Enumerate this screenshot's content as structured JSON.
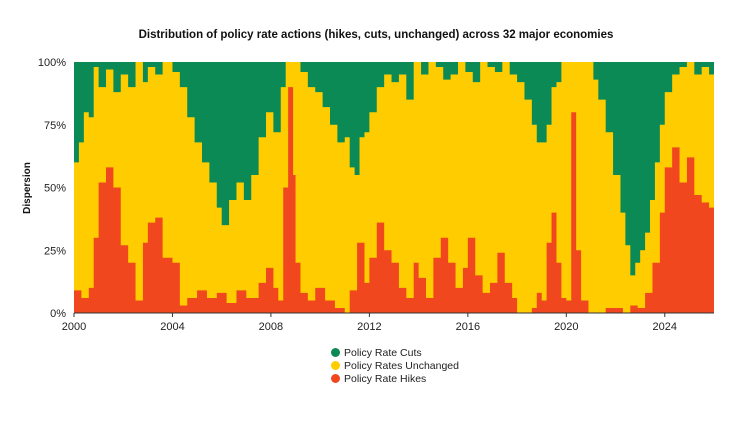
{
  "chart_data": {
    "type": "area",
    "stacked": true,
    "title": "Distribution of policy rate actions (hikes, cuts, unchanged) across 32 major economies",
    "xlabel": "",
    "ylabel": "Dispersion",
    "x_ticks": [
      "2000",
      "2004",
      "2008",
      "2012",
      "2016",
      "2020",
      "2024"
    ],
    "y_ticks": [
      "0%",
      "25%",
      "50%",
      "75%",
      "100%"
    ],
    "ylim": [
      0,
      100
    ],
    "xlim": [
      2000,
      2026
    ],
    "legend_position": "bottom",
    "series": [
      {
        "name": "Policy Rate Hikes",
        "color": "#F0471F",
        "points": [
          [
            2000.0,
            9
          ],
          [
            2000.3,
            6
          ],
          [
            2000.6,
            10
          ],
          [
            2000.8,
            30
          ],
          [
            2001.0,
            52
          ],
          [
            2001.3,
            58
          ],
          [
            2001.6,
            50
          ],
          [
            2001.9,
            27
          ],
          [
            2002.2,
            20
          ],
          [
            2002.5,
            5
          ],
          [
            2002.8,
            28
          ],
          [
            2003.0,
            36
          ],
          [
            2003.3,
            38
          ],
          [
            2003.6,
            22
          ],
          [
            2004.0,
            20
          ],
          [
            2004.3,
            3
          ],
          [
            2004.6,
            6
          ],
          [
            2005.0,
            9
          ],
          [
            2005.4,
            6
          ],
          [
            2005.8,
            8
          ],
          [
            2006.2,
            4
          ],
          [
            2006.6,
            9
          ],
          [
            2007.0,
            6
          ],
          [
            2007.5,
            12
          ],
          [
            2007.8,
            18
          ],
          [
            2008.1,
            10
          ],
          [
            2008.3,
            5
          ],
          [
            2008.5,
            50
          ],
          [
            2008.7,
            90
          ],
          [
            2008.9,
            55
          ],
          [
            2009.0,
            20
          ],
          [
            2009.2,
            8
          ],
          [
            2009.5,
            5
          ],
          [
            2009.8,
            10
          ],
          [
            2010.2,
            5
          ],
          [
            2010.6,
            2
          ],
          [
            2011.0,
            0
          ],
          [
            2011.2,
            9
          ],
          [
            2011.5,
            28
          ],
          [
            2011.8,
            12
          ],
          [
            2012.0,
            22
          ],
          [
            2012.3,
            36
          ],
          [
            2012.6,
            25
          ],
          [
            2012.9,
            20
          ],
          [
            2013.2,
            10
          ],
          [
            2013.5,
            6
          ],
          [
            2013.8,
            20
          ],
          [
            2014.0,
            14
          ],
          [
            2014.3,
            6
          ],
          [
            2014.6,
            22
          ],
          [
            2014.9,
            30
          ],
          [
            2015.2,
            20
          ],
          [
            2015.5,
            10
          ],
          [
            2015.8,
            18
          ],
          [
            2016.0,
            30
          ],
          [
            2016.3,
            15
          ],
          [
            2016.6,
            8
          ],
          [
            2016.9,
            12
          ],
          [
            2017.2,
            24
          ],
          [
            2017.5,
            12
          ],
          [
            2017.8,
            6
          ],
          [
            2018.0,
            0
          ],
          [
            2018.3,
            0
          ],
          [
            2018.6,
            2
          ],
          [
            2018.8,
            8
          ],
          [
            2019.0,
            5
          ],
          [
            2019.2,
            28
          ],
          [
            2019.4,
            40
          ],
          [
            2019.6,
            20
          ],
          [
            2019.8,
            6
          ],
          [
            2020.0,
            5
          ],
          [
            2020.2,
            80
          ],
          [
            2020.4,
            25
          ],
          [
            2020.6,
            5
          ],
          [
            2020.9,
            0
          ],
          [
            2021.3,
            0
          ],
          [
            2021.6,
            2
          ],
          [
            2022.0,
            2
          ],
          [
            2022.3,
            0
          ],
          [
            2022.6,
            3
          ],
          [
            2022.9,
            2
          ],
          [
            2023.2,
            8
          ],
          [
            2023.5,
            20
          ],
          [
            2023.8,
            40
          ],
          [
            2024.0,
            58
          ],
          [
            2024.3,
            66
          ],
          [
            2024.6,
            52
          ],
          [
            2024.9,
            62
          ],
          [
            2025.2,
            47
          ],
          [
            2025.5,
            44
          ],
          [
            2025.8,
            42
          ]
        ]
      },
      {
        "name": "Policy Rates Unchanged",
        "color": "#FFCC00",
        "upper_bound_points": [
          [
            2000.0,
            60
          ],
          [
            2000.2,
            68
          ],
          [
            2000.4,
            80
          ],
          [
            2000.6,
            78
          ],
          [
            2000.8,
            98
          ],
          [
            2001.0,
            90
          ],
          [
            2001.3,
            97
          ],
          [
            2001.6,
            88
          ],
          [
            2001.9,
            95
          ],
          [
            2002.2,
            90
          ],
          [
            2002.5,
            100
          ],
          [
            2002.8,
            92
          ],
          [
            2003.0,
            98
          ],
          [
            2003.3,
            95
          ],
          [
            2003.6,
            100
          ],
          [
            2004.0,
            96
          ],
          [
            2004.3,
            90
          ],
          [
            2004.6,
            78
          ],
          [
            2004.9,
            68
          ],
          [
            2005.2,
            60
          ],
          [
            2005.5,
            52
          ],
          [
            2005.8,
            42
          ],
          [
            2006.0,
            35
          ],
          [
            2006.3,
            45
          ],
          [
            2006.6,
            52
          ],
          [
            2006.9,
            45
          ],
          [
            2007.2,
            55
          ],
          [
            2007.5,
            70
          ],
          [
            2007.8,
            80
          ],
          [
            2008.1,
            72
          ],
          [
            2008.4,
            90
          ],
          [
            2008.6,
            100
          ],
          [
            2008.8,
            100
          ],
          [
            2009.0,
            100
          ],
          [
            2009.2,
            96
          ],
          [
            2009.5,
            90
          ],
          [
            2009.8,
            88
          ],
          [
            2010.1,
            82
          ],
          [
            2010.4,
            75
          ],
          [
            2010.7,
            68
          ],
          [
            2011.0,
            70
          ],
          [
            2011.2,
            58
          ],
          [
            2011.4,
            55
          ],
          [
            2011.6,
            70
          ],
          [
            2011.8,
            72
          ],
          [
            2012.0,
            80
          ],
          [
            2012.3,
            90
          ],
          [
            2012.6,
            95
          ],
          [
            2012.9,
            92
          ],
          [
            2013.2,
            95
          ],
          [
            2013.5,
            85
          ],
          [
            2013.8,
            100
          ],
          [
            2014.1,
            95
          ],
          [
            2014.4,
            100
          ],
          [
            2014.7,
            98
          ],
          [
            2015.0,
            93
          ],
          [
            2015.3,
            95
          ],
          [
            2015.6,
            100
          ],
          [
            2015.9,
            96
          ],
          [
            2016.2,
            92
          ],
          [
            2016.5,
            100
          ],
          [
            2016.8,
            98
          ],
          [
            2017.1,
            96
          ],
          [
            2017.4,
            100
          ],
          [
            2017.7,
            95
          ],
          [
            2018.0,
            92
          ],
          [
            2018.3,
            85
          ],
          [
            2018.6,
            75
          ],
          [
            2018.8,
            68
          ],
          [
            2019.0,
            68
          ],
          [
            2019.2,
            75
          ],
          [
            2019.4,
            90
          ],
          [
            2019.6,
            92
          ],
          [
            2019.8,
            100
          ],
          [
            2020.0,
            100
          ],
          [
            2020.3,
            100
          ],
          [
            2020.6,
            100
          ],
          [
            2020.9,
            100
          ],
          [
            2021.1,
            93
          ],
          [
            2021.3,
            85
          ],
          [
            2021.6,
            72
          ],
          [
            2021.9,
            55
          ],
          [
            2022.2,
            40
          ],
          [
            2022.4,
            27
          ],
          [
            2022.6,
            15
          ],
          [
            2022.8,
            20
          ],
          [
            2023.0,
            25
          ],
          [
            2023.2,
            32
          ],
          [
            2023.4,
            45
          ],
          [
            2023.6,
            60
          ],
          [
            2023.8,
            75
          ],
          [
            2024.0,
            88
          ],
          [
            2024.3,
            95
          ],
          [
            2024.6,
            98
          ],
          [
            2024.9,
            100
          ],
          [
            2025.2,
            95
          ],
          [
            2025.5,
            98
          ],
          [
            2025.8,
            95
          ]
        ]
      },
      {
        "name": "Policy Rate Cuts",
        "color": "#0B8A55",
        "upper_bound": 100
      }
    ]
  }
}
